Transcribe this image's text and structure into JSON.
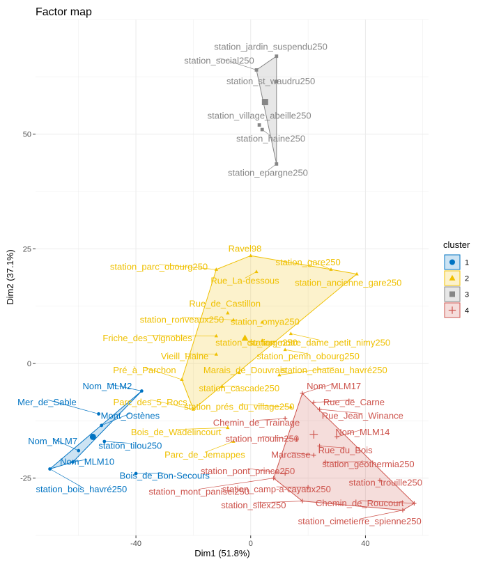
{
  "chart_data": {
    "type": "scatter",
    "title": "Factor map",
    "xlabel": "Dim1 (51.8%)",
    "ylabel": "Dim2 (37.1%)",
    "xlim": [
      -75,
      62
    ],
    "ylim": [
      -37.5,
      75
    ],
    "x_ticks": [
      -40,
      0,
      40
    ],
    "y_ticks": [
      -25,
      0,
      25,
      50
    ],
    "grid": true,
    "legend": {
      "title": "cluster",
      "position": "right",
      "entries": [
        "1",
        "2",
        "3",
        "4"
      ]
    },
    "cluster_colors": {
      "1": "#0073C2",
      "2": "#EFC000",
      "3": "#868686",
      "4": "#CD534C"
    },
    "series": [
      {
        "name": "1",
        "hull": [
          "station_bois_havré250",
          "Nom_MLM10",
          "Nom_MLM2"
        ],
        "center": {
          "x": -55,
          "y": -16
        },
        "points": [
          {
            "label": "Nom_MLM2",
            "x": -38,
            "y": -6,
            "lx": -50,
            "ly": -5
          },
          {
            "label": "Mer_de_Sable",
            "x": -53,
            "y": -11,
            "lx": -71,
            "ly": -8.5
          },
          {
            "label": "Mont_Ostènes",
            "x": -52,
            "y": -13.5,
            "lx": -42,
            "ly": -11.5
          },
          {
            "label": "Nom_MLM7",
            "x": -60,
            "y": -19,
            "lx": -69,
            "ly": -17
          },
          {
            "label": "station_tilou250",
            "x": -51,
            "y": -17,
            "lx": -42,
            "ly": -18
          },
          {
            "label": "Nom_MLM10",
            "x": -62,
            "y": -21.5,
            "lx": -57,
            "ly": -21.5
          },
          {
            "label": "station_bois_havré250",
            "x": -70,
            "y": -23,
            "lx": -59,
            "ly": -27.5
          },
          {
            "label": "Bois_de_Bon-Secours",
            "x": -40,
            "y": -24,
            "lx": -30,
            "ly": -24.5
          }
        ]
      },
      {
        "name": "2",
        "hull": [
          "Ravel98",
          "station_gare250",
          "station_ancienne_gare250",
          "Parc_des_5_Rocs",
          "Pré_à_Parchon",
          "station_parc_obourg250"
        ],
        "center": {
          "x": -2,
          "y": 5.5
        },
        "points": [
          {
            "label": "Ravel98",
            "x": 0,
            "y": 23.5,
            "lx": -2,
            "ly": 25
          },
          {
            "label": "station_gare250",
            "x": 28,
            "y": 20.5,
            "lx": 20,
            "ly": 22
          },
          {
            "label": "station_parc_obourg250",
            "x": -12,
            "y": 20.5,
            "lx": -32,
            "ly": 21
          },
          {
            "label": "station_ancienne_gare250",
            "x": 37,
            "y": 19.5,
            "lx": 34,
            "ly": 17.5
          },
          {
            "label": "Rue_La-dessous",
            "x": 2,
            "y": 20,
            "lx": -2,
            "ly": 18
          },
          {
            "label": "Rue_de_Castillon",
            "x": -8,
            "y": 11,
            "lx": -9,
            "ly": 13
          },
          {
            "label": "station_ronveaux250",
            "x": -6,
            "y": 9.5,
            "lx": -24,
            "ly": 9.5
          },
          {
            "label": "station_omya250",
            "x": 4,
            "y": 9,
            "lx": 5,
            "ly": 9
          },
          {
            "label": "Friche_des_Vignobles",
            "x": -12,
            "y": 6,
            "lx": -36,
            "ly": 5.5
          },
          {
            "label": "station_du_large250",
            "x": 4,
            "y": 5,
            "lx": 2,
            "ly": 4.5
          },
          {
            "label": "station_notre_dame_petit_nimy250",
            "x": 14,
            "y": 6.5,
            "lx": 24,
            "ly": 4.5
          },
          {
            "label": "Vieill_Haine",
            "x": -12,
            "y": 2,
            "lx": -23,
            "ly": 1.5
          },
          {
            "label": "station_pemh_obourg250",
            "x": 12,
            "y": 3,
            "lx": 20,
            "ly": 1.5
          },
          {
            "label": "Pré_à_Parchon",
            "x": -24,
            "y": -3.5,
            "lx": -37,
            "ly": -1.5
          },
          {
            "label": "Marais_de_Douvrais",
            "x": -4,
            "y": -2,
            "lx": -2,
            "ly": -1.5
          },
          {
            "label": "station_chateau_havré250",
            "x": 10,
            "y": -2.5,
            "lx": 29,
            "ly": -1.5
          },
          {
            "label": "station_cascade250",
            "x": -10,
            "y": -5,
            "lx": -4,
            "ly": -5.5
          },
          {
            "label": "Parc_des_5_Rocs",
            "x": -20,
            "y": -10,
            "lx": -35,
            "ly": -8.5
          },
          {
            "label": "station_prés_du_village250",
            "x": 14,
            "y": -9.5,
            "lx": -4,
            "ly": -9.5
          },
          {
            "label": "Bois_de_Wadelincourt",
            "x": -8,
            "y": -14,
            "lx": -26,
            "ly": -15
          },
          {
            "label": "Parc_de_Jemappes",
            "x": -6,
            "y": -17,
            "lx": -16,
            "ly": -20
          }
        ]
      },
      {
        "name": "3",
        "hull": [
          "station_jardin_suspendu250",
          "station_epargne250",
          "station_social250"
        ],
        "center": {
          "x": 5,
          "y": 57
        },
        "points": [
          {
            "label": "station_jardin_suspendu250",
            "x": 9,
            "y": 67,
            "lx": 7,
            "ly": 69
          },
          {
            "label": "station_social250",
            "x": 2,
            "y": 64,
            "lx": -11,
            "ly": 66
          },
          {
            "label": "station_st_waudru250",
            "x": 9,
            "y": 61.5,
            "lx": 7,
            "ly": 61.5
          },
          {
            "label": "station_village_abeille250",
            "x": 3,
            "y": 52,
            "lx": 3,
            "ly": 54
          },
          {
            "label": "station_haine250",
            "x": 4,
            "y": 51,
            "lx": 7,
            "ly": 49
          },
          {
            "label": "station_epargne250",
            "x": 9,
            "y": 43.5,
            "lx": 6,
            "ly": 41.5
          }
        ]
      },
      {
        "name": "4",
        "hull": [
          "Nom_MLM17",
          "Chemin_de_Roucourt",
          "station_cimetierre_spienne250",
          "station_silex250",
          "station_mont_panisel250"
        ],
        "center": {
          "x": 22,
          "y": -15.5
        },
        "points": [
          {
            "label": "Nom_MLM17",
            "x": 18,
            "y": -6.5,
            "lx": 29,
            "ly": -5
          },
          {
            "label": "Rue_de_Carne",
            "x": 22,
            "y": -8.5,
            "lx": 36,
            "ly": -8.5
          },
          {
            "label": "Rue_Jean_Winance",
            "x": 24,
            "y": -10,
            "lx": 39,
            "ly": -11.5
          },
          {
            "label": "Chemin_de_Trainage",
            "x": 12,
            "y": -12,
            "lx": 2,
            "ly": -13
          },
          {
            "label": "Nom_MLM14",
            "x": 30,
            "y": -16,
            "lx": 39,
            "ly": -15
          },
          {
            "label": "station_moulin250",
            "x": 16,
            "y": -16.5,
            "lx": 4,
            "ly": -16.5
          },
          {
            "label": "Rue_du_Bois",
            "x": 24,
            "y": -18,
            "lx": 33,
            "ly": -19
          },
          {
            "label": "Marcasse",
            "x": 22,
            "y": -20,
            "lx": 14,
            "ly": -20
          },
          {
            "label": "station_géothermia250",
            "x": 26,
            "y": -21.5,
            "lx": 41,
            "ly": -22
          },
          {
            "label": "station_pont_prince250",
            "x": 12,
            "y": -24,
            "lx": -1,
            "ly": -23.5
          },
          {
            "label": "station_trouille250",
            "x": 45,
            "y": -25.5,
            "lx": 47,
            "ly": -26
          },
          {
            "label": "station_camp-a-cayaux250",
            "x": 20,
            "y": -27,
            "lx": 9,
            "ly": -27.5
          },
          {
            "label": "station_mont_panisel250",
            "x": 8,
            "y": -25,
            "lx": -18,
            "ly": -28
          },
          {
            "label": "station_silex250",
            "x": 18,
            "y": -30,
            "lx": 1,
            "ly": -31
          },
          {
            "label": "Chemin_de_Roucourt",
            "x": 57,
            "y": -30.5,
            "lx": 38,
            "ly": -30.5
          },
          {
            "label": "station_cimetierre_spienne250",
            "x": 53,
            "y": -32,
            "lx": 38,
            "ly": -34.5
          }
        ]
      }
    ]
  }
}
